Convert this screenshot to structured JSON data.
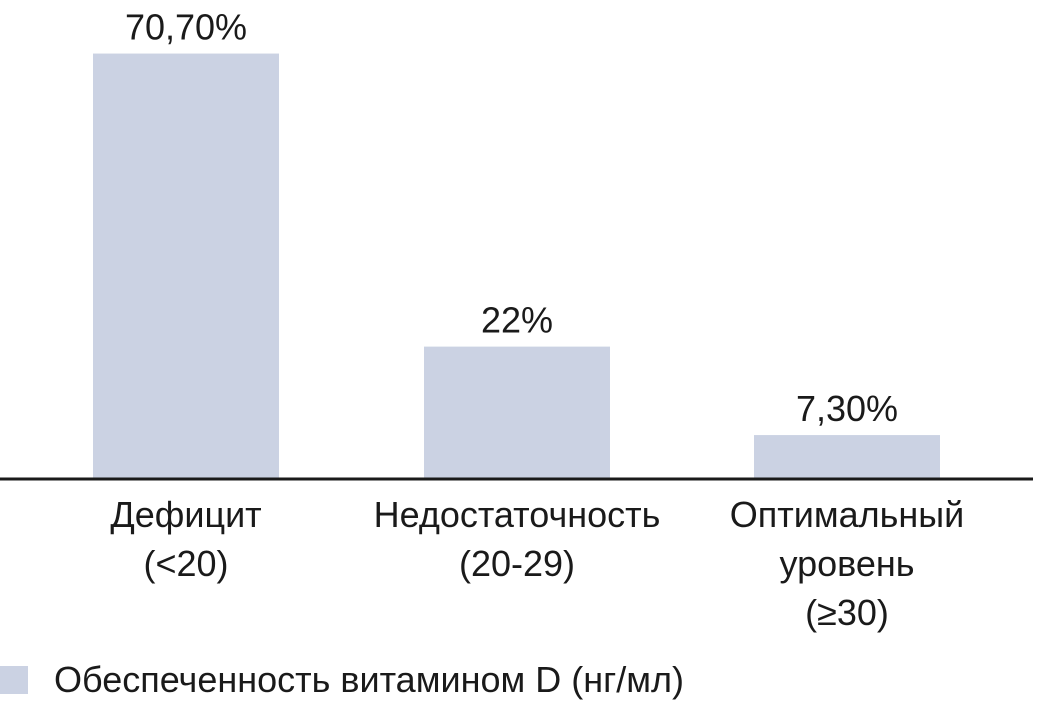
{
  "chart_data": {
    "type": "bar",
    "categories": [
      [
        "Дефицит",
        "(<20)"
      ],
      [
        "Недостаточность",
        "(20-29)"
      ],
      [
        "Оптимальный",
        "уровень",
        "(≥30)"
      ]
    ],
    "values": [
      70.7,
      22,
      7.3
    ],
    "value_labels": [
      "70,70%",
      "22%",
      "7,30%"
    ],
    "series": [
      {
        "name": "Обеспеченность витамином D (нг/мл)",
        "values": [
          70.7,
          22,
          7.3
        ]
      }
    ],
    "ylim": [
      0,
      79.6
    ],
    "grid": false,
    "legend": "bottom-left",
    "colors": {
      "bar": "#cbd2e3",
      "axis": "#1a1a1a",
      "text": "#1a1a1a"
    }
  }
}
